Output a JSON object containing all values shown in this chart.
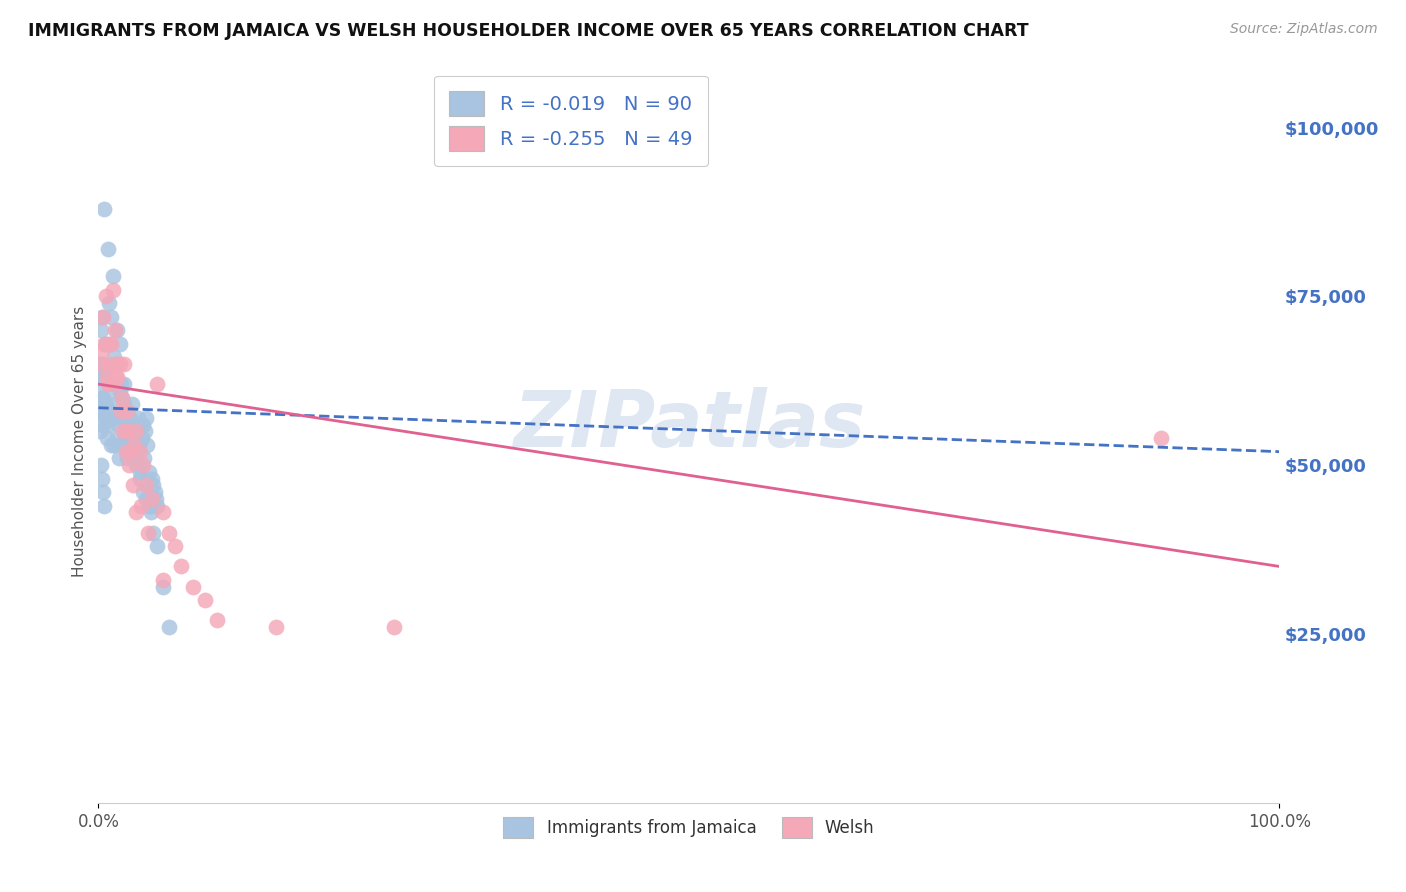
{
  "title": "IMMIGRANTS FROM JAMAICA VS WELSH HOUSEHOLDER INCOME OVER 65 YEARS CORRELATION CHART",
  "source": "Source: ZipAtlas.com",
  "ylabel": "Householder Income Over 65 years",
  "legend_label1": "Immigrants from Jamaica",
  "legend_label2": "Welsh",
  "R1": "-0.019",
  "N1": "90",
  "R2": "-0.255",
  "N2": "49",
  "color_blue": "#a8c4e0",
  "color_pink": "#f4a8b8",
  "color_trendline_blue": "#4472c4",
  "color_trendline_pink": "#e06090",
  "watermark_color": "#c8d8ea",
  "background_color": "#ffffff",
  "grid_color": "#e0e0e0",
  "xlim": [
    0,
    100
  ],
  "ylim": [
    0,
    107000
  ],
  "yticks": [
    25000,
    50000,
    75000,
    100000
  ],
  "ytick_labels": [
    "$25,000",
    "$50,000",
    "$75,000",
    "$100,000"
  ],
  "xtick_labels": [
    "0.0%",
    "100.0%"
  ],
  "trendline_blue_y0": 58500,
  "trendline_blue_y100": 52000,
  "trendline_pink_y0": 62000,
  "trendline_pink_y100": 35000,
  "jamaica_x": [
    0.3,
    0.5,
    0.8,
    1.2,
    1.5,
    1.8,
    2.0,
    2.2,
    0.2,
    0.4,
    0.6,
    0.9,
    1.1,
    1.3,
    1.6,
    1.9,
    2.1,
    2.4,
    2.6,
    2.8,
    3.0,
    3.2,
    3.5,
    3.8,
    4.0,
    4.3,
    4.6,
    5.0,
    5.5,
    6.0,
    0.15,
    0.25,
    0.35,
    0.45,
    0.55,
    0.65,
    0.75,
    0.85,
    0.95,
    1.05,
    1.15,
    1.25,
    1.35,
    1.45,
    1.55,
    1.65,
    1.75,
    1.85,
    1.95,
    2.05,
    2.15,
    2.25,
    2.35,
    2.45,
    2.55,
    2.65,
    2.75,
    2.85,
    2.95,
    3.05,
    3.15,
    3.25,
    3.35,
    3.45,
    3.55,
    3.65,
    3.75,
    3.85,
    3.95,
    4.05,
    4.15,
    4.25,
    4.35,
    4.45,
    4.55,
    4.65,
    4.75,
    4.85,
    4.95,
    0.1,
    0.1,
    0.2,
    0.2,
    0.3,
    0.3,
    0.4,
    0.4,
    0.5,
    0.5,
    0.6
  ],
  "jamaica_y": [
    72000,
    88000,
    82000,
    78000,
    65000,
    68000,
    60000,
    62000,
    70000,
    65000,
    68000,
    74000,
    72000,
    66000,
    70000,
    62000,
    58000,
    56000,
    52000,
    56000,
    54000,
    50000,
    48000,
    46000,
    45000,
    44000,
    40000,
    38000,
    32000,
    26000,
    58000,
    62000,
    60000,
    63000,
    57000,
    59000,
    54000,
    56000,
    58000,
    53000,
    61000,
    57000,
    53000,
    59000,
    54000,
    56000,
    51000,
    61000,
    57000,
    53000,
    59000,
    54000,
    56000,
    51000,
    55000,
    57000,
    53000,
    59000,
    54000,
    56000,
    51000,
    55000,
    57000,
    53000,
    49000,
    54000,
    56000,
    51000,
    55000,
    57000,
    53000,
    49000,
    44000,
    43000,
    48000,
    47000,
    46000,
    45000,
    44000,
    65000,
    55000,
    60000,
    50000,
    58000,
    48000,
    56000,
    46000,
    64000,
    44000,
    68000
  ],
  "welsh_x": [
    0.2,
    0.4,
    0.6,
    0.8,
    1.0,
    1.2,
    1.4,
    1.5,
    1.6,
    1.8,
    2.0,
    2.2,
    2.4,
    2.5,
    2.8,
    3.0,
    3.2,
    3.5,
    3.8,
    4.0,
    4.5,
    5.0,
    5.5,
    6.0,
    6.5,
    7.0,
    8.0,
    9.0,
    10.0,
    15.0,
    0.3,
    0.5,
    0.7,
    0.9,
    1.1,
    1.3,
    1.5,
    1.7,
    1.9,
    2.1,
    2.3,
    2.6,
    2.9,
    3.2,
    3.6,
    4.2,
    5.5,
    90.0,
    25.0
  ],
  "welsh_y": [
    65000,
    72000,
    75000,
    62000,
    68000,
    76000,
    70000,
    65000,
    63000,
    65000,
    60000,
    65000,
    58000,
    55000,
    52000,
    53000,
    55000,
    52000,
    50000,
    47000,
    45000,
    62000,
    43000,
    40000,
    38000,
    35000,
    32000,
    30000,
    27000,
    26000,
    67000,
    68000,
    63000,
    65000,
    68000,
    62000,
    63000,
    65000,
    58000,
    55000,
    52000,
    50000,
    47000,
    43000,
    44000,
    40000,
    33000,
    54000,
    26000
  ]
}
